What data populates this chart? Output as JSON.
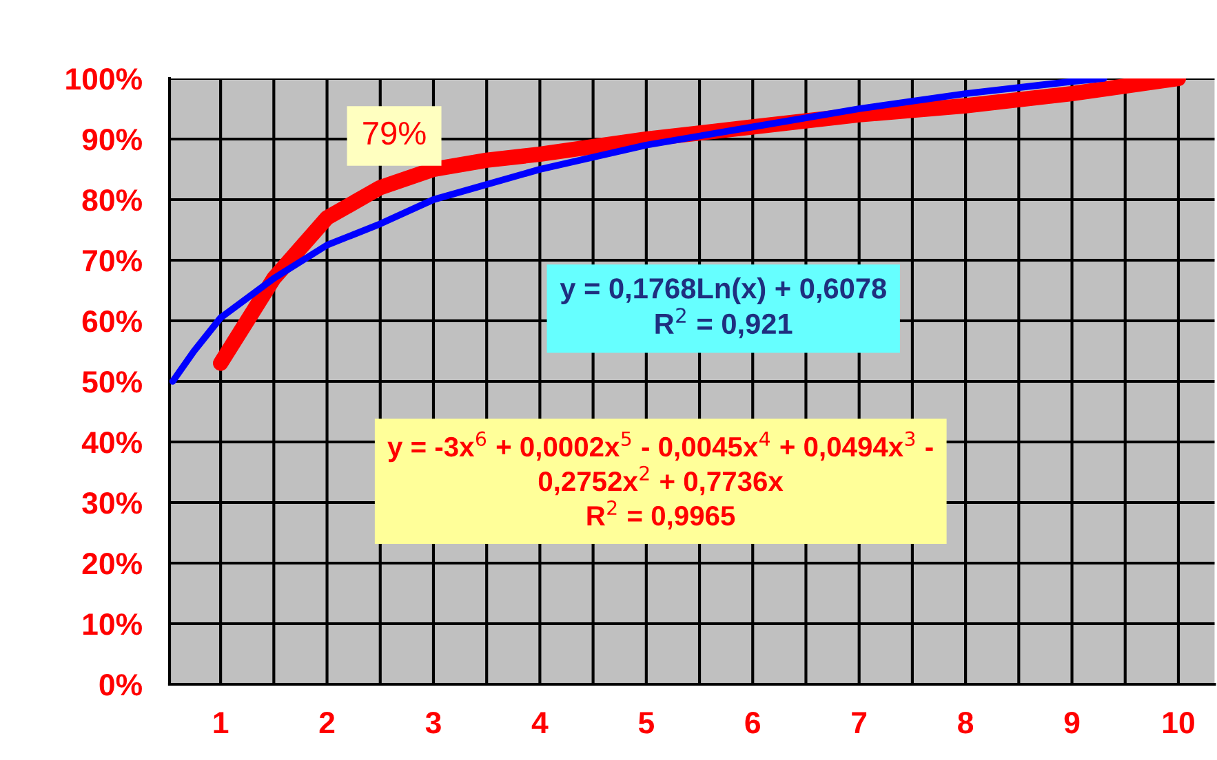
{
  "chart_data": {
    "type": "line",
    "xlim": [
      0.52,
      10.34
    ],
    "xticks": [
      1,
      {
        "value": 1.5,
        "label": null
      },
      2,
      {
        "value": 2.5,
        "label": null
      },
      3,
      {
        "value": 3.5,
        "label": null
      },
      4,
      {
        "value": 4.5,
        "label": null
      },
      5,
      {
        "value": 5.5,
        "label": null
      },
      6,
      {
        "value": 6.5,
        "label": null
      },
      7,
      {
        "value": 7.5,
        "label": null
      },
      8,
      {
        "value": 8.5,
        "label": null
      },
      9,
      {
        "value": 9.5,
        "label": null
      },
      10
    ],
    "ylim": [
      0,
      100
    ],
    "yticks": [
      {
        "value": 0,
        "label": "0%"
      },
      {
        "value": 10,
        "label": "10%"
      },
      {
        "value": 20,
        "label": "20%"
      },
      {
        "value": 30,
        "label": "30%"
      },
      {
        "value": 40,
        "label": "40%"
      },
      {
        "value": 50,
        "label": "50%"
      },
      {
        "value": 60,
        "label": "60%"
      },
      {
        "value": 70,
        "label": "70%"
      },
      {
        "value": 80,
        "label": "80%"
      },
      {
        "value": 90,
        "label": "90%"
      },
      {
        "value": 100,
        "label": "100%"
      }
    ],
    "grid": true,
    "series": [
      {
        "color": "#0000ff",
        "x": [
          0.55,
          0.75,
          1,
          1.5,
          2,
          2.5,
          3,
          4,
          5,
          6,
          7,
          8,
          9,
          9.3
        ],
        "values": [
          50,
          55,
          60.5,
          67,
          72.5,
          76,
          80,
          85,
          89,
          92,
          95,
          97.5,
          99.5,
          100
        ]
      },
      {
        "color": "#ff0000",
        "x": [
          1,
          1.25,
          1.5,
          1.75,
          2,
          2.5,
          3,
          3.5,
          4,
          5,
          6,
          7,
          8,
          9,
          10
        ],
        "values": [
          53,
          60,
          67,
          72,
          77,
          82,
          85,
          86.5,
          87.5,
          90,
          92,
          94,
          95.5,
          97.5,
          100
        ]
      }
    ],
    "annotations": [
      "79%",
      "y = 0,1768Ln(x) + 0,6078\nR$^{2}$ = 0,921",
      "y = -3x$^{6}$ + 0,0002x$^{5}$ - 0,0045x$^{4}$ + 0,0494x$^{3}$ -\n0,2752x$^{2}$ + 0,7736x\nR$^{2}$ = 0,9965"
    ]
  }
}
